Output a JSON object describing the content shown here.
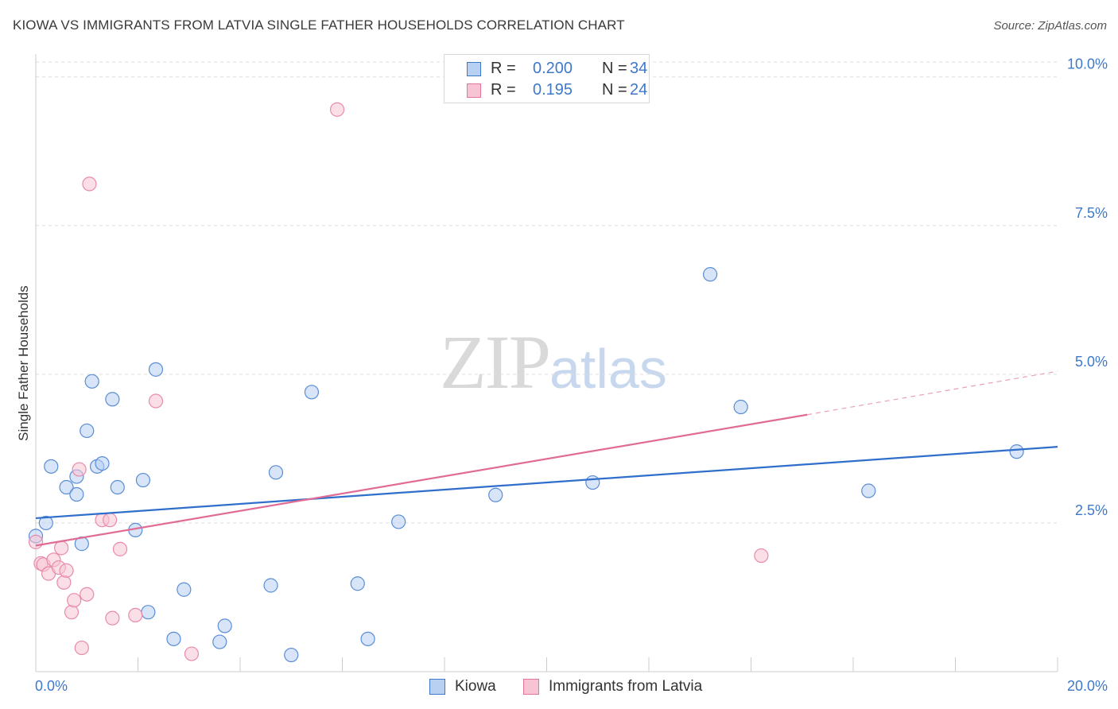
{
  "title": "KIOWA VS IMMIGRANTS FROM LATVIA SINGLE FATHER HOUSEHOLDS CORRELATION CHART",
  "source": "Source: ZipAtlas.com",
  "watermark": {
    "zip": "ZIP",
    "atlas": "atlas"
  },
  "colors": {
    "blue": "#3e78c9",
    "blue_fill": "#b8d0f2",
    "blue_line": "#2f6ecb",
    "pink": "#e7739c",
    "pink_fill": "#f7c4d3",
    "pink_line": "#e06c96",
    "grid": "#dddddd",
    "axis_text": "#3e78c9"
  },
  "legend_top": [
    {
      "r_label": "R =",
      "r_value": "0.200",
      "n_label": "N =",
      "n_value": "34"
    },
    {
      "r_label": "R =",
      "r_value": "0.195",
      "n_label": "N =",
      "n_value": "24"
    }
  ],
  "chart_data": {
    "type": "scatter",
    "title": "KIOWA VS IMMIGRANTS FROM LATVIA SINGLE FATHER HOUSEHOLDS CORRELATION CHART",
    "xlabel": "",
    "ylabel": "Single Father Households",
    "xlim": [
      0,
      20
    ],
    "ylim": [
      0,
      10.25
    ],
    "x_tick_labels": [
      "0.0%",
      "20.0%"
    ],
    "y_ticks": [
      2.5,
      5.0,
      7.5,
      10.0
    ],
    "y_tick_labels": [
      "2.5%",
      "5.0%",
      "7.5%",
      "10.0%"
    ],
    "grid": true,
    "legend_position": "bottom",
    "series": [
      {
        "name": "Kiowa",
        "color": "#3e78c9",
        "points": [
          [
            0.0,
            2.28
          ],
          [
            0.2,
            2.5
          ],
          [
            0.3,
            3.45
          ],
          [
            0.6,
            3.1
          ],
          [
            0.8,
            3.28
          ],
          [
            0.8,
            2.98
          ],
          [
            0.9,
            2.15
          ],
          [
            1.0,
            4.05
          ],
          [
            1.1,
            4.88
          ],
          [
            1.2,
            3.45
          ],
          [
            1.3,
            3.5
          ],
          [
            1.5,
            4.58
          ],
          [
            1.6,
            3.1
          ],
          [
            1.95,
            2.38
          ],
          [
            2.1,
            3.22
          ],
          [
            2.2,
            1.0
          ],
          [
            2.35,
            5.08
          ],
          [
            2.7,
            0.55
          ],
          [
            2.9,
            1.38
          ],
          [
            3.6,
            0.5
          ],
          [
            3.7,
            0.77
          ],
          [
            4.6,
            1.45
          ],
          [
            4.7,
            3.35
          ],
          [
            5.0,
            0.28
          ],
          [
            5.4,
            4.7
          ],
          [
            6.3,
            1.48
          ],
          [
            6.5,
            0.55
          ],
          [
            7.1,
            2.52
          ],
          [
            9.0,
            2.97
          ],
          [
            10.9,
            3.18
          ],
          [
            13.2,
            6.68
          ],
          [
            13.8,
            4.45
          ],
          [
            16.3,
            3.04
          ],
          [
            19.2,
            3.7
          ]
        ]
      },
      {
        "name": "Immigrants from Latvia",
        "color": "#e7739c",
        "points": [
          [
            0.0,
            2.18
          ],
          [
            0.1,
            1.82
          ],
          [
            0.15,
            1.8
          ],
          [
            0.25,
            1.65
          ],
          [
            0.35,
            1.88
          ],
          [
            0.45,
            1.75
          ],
          [
            0.5,
            2.08
          ],
          [
            0.55,
            1.5
          ],
          [
            0.6,
            1.7
          ],
          [
            0.7,
            1.0
          ],
          [
            0.75,
            1.2
          ],
          [
            0.85,
            3.4
          ],
          [
            0.9,
            0.4
          ],
          [
            1.0,
            1.3
          ],
          [
            1.05,
            8.2
          ],
          [
            1.3,
            2.55
          ],
          [
            1.45,
            2.55
          ],
          [
            1.5,
            0.9
          ],
          [
            1.65,
            2.06
          ],
          [
            1.95,
            0.95
          ],
          [
            2.35,
            4.55
          ],
          [
            3.05,
            0.3
          ],
          [
            5.9,
            9.45
          ],
          [
            14.2,
            1.95
          ]
        ]
      }
    ],
    "trendlines": [
      {
        "series": "Kiowa",
        "x": [
          0,
          20
        ],
        "y": [
          2.58,
          3.78
        ]
      },
      {
        "series": "Immigrants from Latvia",
        "x": [
          0,
          15.1
        ],
        "y": [
          2.12,
          4.32
        ],
        "dashed_extension_to": [
          20,
          5.05
        ]
      }
    ]
  }
}
